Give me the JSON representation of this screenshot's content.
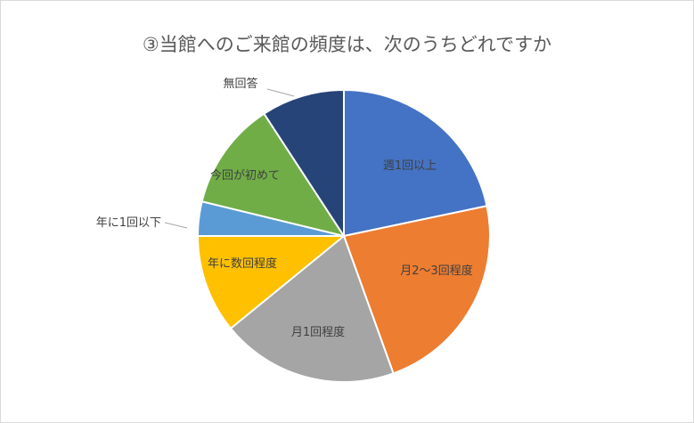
{
  "chart_data": {
    "type": "pie",
    "title": "③当館へのご来館の頻度は、次のうちどれですか",
    "start_angle_deg": 0,
    "direction": "clockwise",
    "legend": "none",
    "slices": [
      {
        "label": "週1回以上",
        "value": 21.7,
        "color": "#4472C4"
      },
      {
        "label": "月2～3回程度",
        "value": 22.8,
        "color": "#ED7D31"
      },
      {
        "label": "月1回程度",
        "value": 19.6,
        "color": "#A5A5A5"
      },
      {
        "label": "年に数回程度",
        "value": 10.9,
        "color": "#FFC000"
      },
      {
        "label": "年に1回以下",
        "value": 3.8,
        "color": "#5B9BD5"
      },
      {
        "label": "今回が初めて",
        "value": 12.0,
        "color": "#70AD47"
      },
      {
        "label": "無回答",
        "value": 9.2,
        "color": "#264478"
      }
    ]
  }
}
